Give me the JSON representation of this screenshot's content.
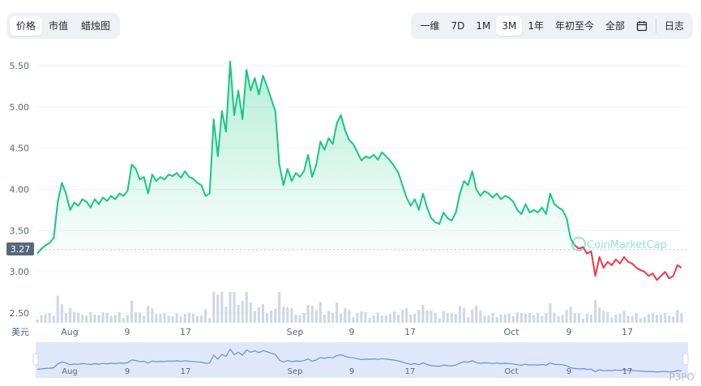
{
  "tabs_left": [
    "价格",
    "市值",
    "蜡烛图"
  ],
  "active_left": 0,
  "tabs_right": [
    "一维",
    "7D",
    "1M",
    "3M",
    "1年",
    "年初至今",
    "全部"
  ],
  "active_right": 3,
  "log_label": "日志",
  "calendar_icon": "calendar-icon",
  "currency_label": "美元",
  "current_price_label": "3.27",
  "brand_watermark": "CoinMarketCap",
  "bottom_watermark": "P3PO",
  "colors": {
    "up": "#16c784",
    "down": "#ea3943",
    "grid": "#eff2f5",
    "volume": "#cfd6e4",
    "navigator": "#6e8cd8",
    "navigator_bg": "#dfe7fb"
  },
  "chart_data": {
    "type": "line",
    "title": "",
    "xlabel": "",
    "ylabel": "",
    "y_ticks": [
      "5.50",
      "5.00",
      "4.50",
      "4.00",
      "3.50",
      "3.00",
      "2.50"
    ],
    "ylim": [
      2.5,
      5.5
    ],
    "x_ticks": [
      "Aug",
      "9",
      "17",
      "Sep",
      "9",
      "17",
      "Oct",
      "9",
      "17"
    ],
    "reference_price": 3.27,
    "series": [
      {
        "values": [
          3.22,
          3.28,
          3.32,
          3.35,
          3.41,
          3.85,
          4.08,
          3.95,
          3.75,
          3.84,
          3.8,
          3.88,
          3.85,
          3.78,
          3.88,
          3.82,
          3.9,
          3.86,
          3.92,
          3.88,
          3.95,
          3.92,
          3.98,
          4.3,
          4.25,
          4.12,
          4.15,
          3.95,
          4.18,
          4.1,
          4.15,
          4.12,
          4.18,
          4.16,
          4.2,
          4.14,
          4.22,
          4.15,
          4.13,
          4.08,
          4.05,
          3.92,
          3.95,
          4.85,
          4.4,
          4.95,
          4.7,
          5.55,
          4.9,
          5.2,
          4.85,
          5.45,
          5.2,
          5.35,
          5.15,
          5.38,
          5.25,
          5.1,
          4.95,
          4.3,
          4.05,
          4.25,
          4.1,
          4.2,
          4.15,
          4.22,
          4.42,
          4.15,
          4.3,
          4.58,
          4.48,
          4.62,
          4.55,
          4.8,
          4.9,
          4.72,
          4.6,
          4.55,
          4.45,
          4.35,
          4.4,
          4.38,
          4.42,
          4.36,
          4.45,
          4.4,
          4.35,
          4.28,
          4.2,
          4.05,
          3.9,
          3.8,
          3.88,
          3.75,
          3.95,
          3.78,
          3.65,
          3.6,
          3.58,
          3.72,
          3.65,
          3.62,
          3.72,
          3.95,
          4.1,
          4.05,
          4.22,
          4.0,
          3.92,
          3.98,
          3.95,
          3.9,
          3.95,
          3.88,
          3.92,
          3.9,
          3.85,
          3.75,
          3.7,
          3.82,
          3.72,
          3.75,
          3.72,
          3.78,
          3.7,
          3.95,
          3.82,
          3.78,
          3.75,
          3.65,
          3.4,
          3.32
        ]
      },
      {
        "values": [
          3.32,
          3.28,
          3.3,
          3.22,
          3.25,
          2.95,
          3.18,
          3.05,
          3.12,
          3.08,
          3.15,
          3.1,
          3.18,
          3.12,
          3.1,
          3.05,
          3.02,
          3.0,
          2.95,
          2.98,
          2.9,
          2.95,
          3.0,
          2.92,
          2.95,
          3.08,
          3.05
        ]
      }
    ]
  }
}
